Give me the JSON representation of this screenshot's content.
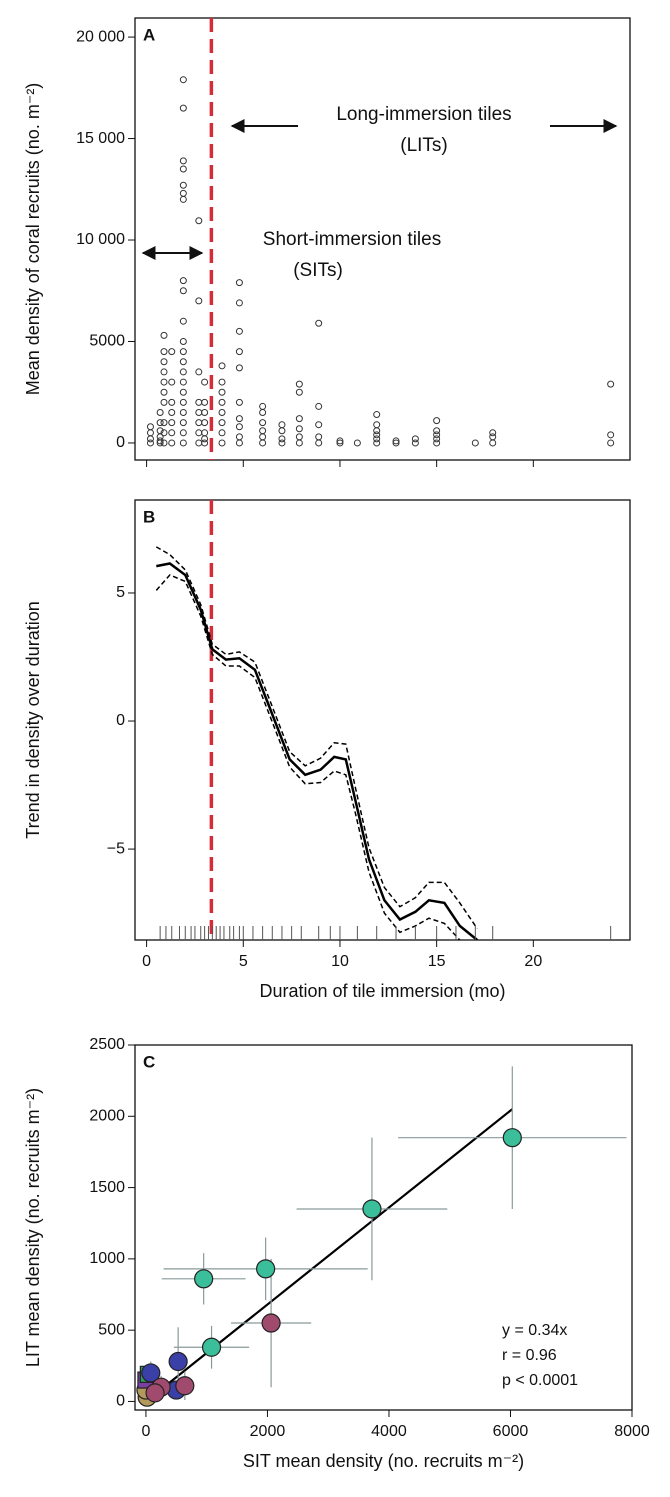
{
  "chart_data": [
    {
      "type": "strip",
      "label": "A",
      "ylabel": "Mean density of coral recruits (no. m⁻²)",
      "xlim": [
        -0.6,
        25
      ],
      "ylim": [
        -840,
        20940
      ],
      "yticks": [
        0,
        5000,
        {
          "value": 10000,
          "label": "10 000"
        },
        {
          "value": 15000,
          "label": "15 000"
        },
        {
          "value": 20000,
          "label": "20 000"
        }
      ],
      "threshold": 3.35,
      "threshold_color": "#d62c3a",
      "annotations": [
        "Long-immersion tiles",
        "(LITs)",
        "Short-immersion tiles",
        "(SITs)"
      ],
      "columns": [
        {
          "x": 0.2,
          "y": [
            0,
            200,
            500,
            800
          ]
        },
        {
          "x": 0.7,
          "y": [
            0,
            100,
            300,
            600,
            1000,
            1500
          ]
        },
        {
          "x": 0.9,
          "y": [
            0,
            500,
            1000,
            2000,
            2500,
            3000,
            3500,
            4000,
            4500,
            5300
          ]
        },
        {
          "x": 1.3,
          "y": [
            0,
            500,
            1000,
            1500,
            2000,
            3000,
            4500
          ]
        },
        {
          "x": 1.9,
          "y": [
            0,
            500,
            1000,
            1500,
            2000,
            2500,
            3000,
            3500,
            4000,
            4500,
            5000,
            6000,
            7500,
            8000,
            12000,
            12300,
            12700,
            13500,
            13900,
            16500,
            17900
          ]
        },
        {
          "x": 2.7,
          "y": [
            0,
            500,
            1000,
            1500,
            2000,
            3500,
            7000,
            10950
          ]
        },
        {
          "x": 3.0,
          "y": [
            0,
            200,
            500,
            1000,
            1500,
            2000,
            3000
          ]
        },
        {
          "x": 3.9,
          "y": [
            0,
            500,
            1000,
            1500,
            2000,
            2500,
            3000,
            3800
          ]
        },
        {
          "x": 4.8,
          "y": [
            0,
            300,
            800,
            1200,
            2000,
            3700,
            4500,
            5500,
            6900,
            7900
          ]
        },
        {
          "x": 6.0,
          "y": [
            0,
            300,
            600,
            1000,
            1500,
            1800
          ]
        },
        {
          "x": 7.0,
          "y": [
            0,
            200,
            600,
            900
          ]
        },
        {
          "x": 7.9,
          "y": [
            0,
            300,
            700,
            1200,
            2500,
            2900
          ]
        },
        {
          "x": 8.9,
          "y": [
            0,
            300,
            900,
            1800,
            5900
          ]
        },
        {
          "x": 10,
          "y": [
            0,
            100
          ]
        },
        {
          "x": 10.9,
          "y": [
            0
          ]
        },
        {
          "x": 11.9,
          "y": [
            0,
            200,
            400,
            600,
            900,
            1400
          ]
        },
        {
          "x": 12.9,
          "y": [
            0,
            100
          ]
        },
        {
          "x": 13.9,
          "y": [
            0,
            200
          ]
        },
        {
          "x": 15,
          "y": [
            0,
            200,
            400,
            600,
            1100
          ]
        },
        {
          "x": 17,
          "y": [
            0
          ]
        },
        {
          "x": 17.9,
          "y": [
            0,
            300,
            500
          ]
        },
        {
          "x": 24,
          "y": [
            0,
            400,
            2900
          ]
        }
      ]
    },
    {
      "type": "line",
      "label": "B",
      "ylabel": "Trend in density over duration",
      "xlabel": "Duration of tile immersion (mo)",
      "xlim": [
        -0.6,
        25
      ],
      "ylim": [
        -8.55,
        8.63
      ],
      "xticks": [
        0,
        5,
        10,
        15,
        20
      ],
      "yticks": [
        {
          "value": -5,
          "label": "−5"
        },
        0,
        5
      ],
      "threshold": 3.35,
      "threshold_color": "#d62c3a",
      "x": [
        0.5,
        1.2,
        2,
        2.8,
        3.4,
        4.1,
        4.8,
        5.6,
        6.4,
        7.4,
        8.2,
        9,
        9.7,
        10.3,
        10.8,
        11.5,
        12.3,
        13.1,
        13.9,
        14.6,
        15.4,
        16.2,
        17.1
      ],
      "series": [
        {
          "color": "#000000",
          "style": "solid",
          "values": [
            6.05,
            6.15,
            5.7,
            4.35,
            2.8,
            2.4,
            2.45,
            2.0,
            0.45,
            -1.5,
            -2.1,
            -1.9,
            -1.4,
            -1.5,
            -3.1,
            -5.4,
            -7.0,
            -7.75,
            -7.45,
            -7.0,
            -7.1,
            -8.0,
            -8.55
          ]
        },
        {
          "color": "#000000",
          "style": "dashed",
          "values": [
            6.8,
            6.5,
            5.9,
            4.55,
            3.0,
            2.6,
            2.7,
            2.3,
            0.75,
            -1.2,
            -1.75,
            -1.45,
            -0.85,
            -0.9,
            -2.6,
            -4.95,
            -6.5,
            -7.25,
            -6.9,
            -6.3,
            -6.3,
            -7.1,
            -8.1
          ]
        },
        {
          "color": "#000000",
          "style": "dashed",
          "values": [
            5.1,
            5.7,
            5.45,
            4.1,
            2.6,
            2.15,
            2.15,
            1.7,
            0.15,
            -1.8,
            -2.45,
            -2.4,
            -1.95,
            -2.1,
            -3.6,
            -5.9,
            -7.5,
            -8.25,
            -8.0,
            -7.7,
            -7.9,
            -8.55,
            null
          ]
        }
      ],
      "rug": [
        0.7,
        1,
        1.3,
        1.7,
        2,
        2.3,
        2.5,
        2.8,
        3,
        3.2,
        3.4,
        3.6,
        3.8,
        4,
        4.3,
        4.5,
        4.8,
        5,
        5.5,
        6,
        6.5,
        7,
        7.5,
        8,
        8.9,
        9.5,
        10,
        10.9,
        11.9,
        12.9,
        13.9,
        15,
        16,
        17,
        17.9,
        24
      ]
    },
    {
      "type": "scatter",
      "label": "C",
      "ylabel": "LIT mean density (no. recruits m⁻²)",
      "xlabel": "SIT mean density (no. recruits m⁻²)",
      "xlim": [
        -180,
        8000
      ],
      "ylim": [
        -60,
        2500
      ],
      "xticks": [
        0,
        2000,
        4000,
        6000,
        8000
      ],
      "yticks": [
        0,
        500,
        1000,
        1500,
        2000,
        2500
      ],
      "fit": {
        "slope": 0.34,
        "color": "#000000"
      },
      "annotations": [
        "y = 0.34x",
        "r = 0.96",
        "p < 0.0001"
      ],
      "series": [
        {
          "color": "#b39a5c",
          "marker": "circle",
          "x": [
            20,
            0
          ],
          "y": [
            30,
            80
          ],
          "xerr": [
            60,
            50
          ],
          "yerr": [
            40,
            40
          ]
        },
        {
          "color": "#7a3fa0",
          "marker": "square",
          "x": [
            0
          ],
          "y": [
            150
          ],
          "xerr": [
            80
          ],
          "yerr": [
            60
          ]
        },
        {
          "color": "#2e9e5e",
          "marker": "square",
          "x": [
            40
          ],
          "y": [
            190
          ],
          "xerr": [
            80
          ],
          "yerr": [
            60
          ]
        },
        {
          "color": "#3b3fa8",
          "marker": "circle",
          "x": [
            530,
            80,
            500
          ],
          "y": [
            280,
            200,
            80
          ],
          "xerr": [
            150,
            100,
            120
          ],
          "yerr": [
            240,
            80,
            60
          ]
        },
        {
          "color": "#a04a6e",
          "marker": "circle",
          "x": [
            2060,
            640,
            250,
            150
          ],
          "y": [
            550,
            110,
            100,
            60
          ],
          "xerr": [
            660,
            150,
            150,
            100
          ],
          "yerr": [
            450,
            100,
            80,
            60
          ]
        },
        {
          "color": "#3bbf9a",
          "marker": "circle",
          "x": [
            6030,
            3720,
            1970,
            950,
            1080
          ],
          "y": [
            1850,
            1350,
            930,
            860,
            380
          ],
          "xerr": [
            1880,
            1240,
            1680,
            690,
            620
          ],
          "yerr": [
            500,
            500,
            220,
            180,
            150
          ]
        }
      ]
    }
  ]
}
